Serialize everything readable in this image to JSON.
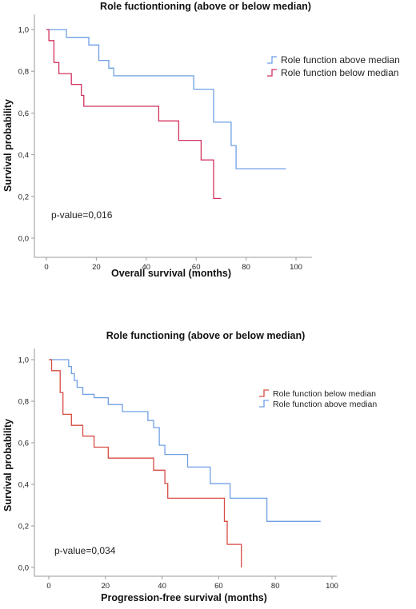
{
  "chart_data": [
    {
      "type": "line",
      "subtype": "kaplan-meier",
      "title": "Role fuctiontioning (above or below median)",
      "xlabel": "Overall survival (months)",
      "ylabel": "Survival probability",
      "xlim": [
        0,
        100
      ],
      "ylim": [
        0,
        1
      ],
      "xticks": [
        "0",
        "20",
        "40",
        "60",
        "80",
        "100"
      ],
      "yticks": [
        "0,0",
        "0,2",
        "0,4",
        "0,6",
        "0,8",
        "1,0"
      ],
      "annotation": "p-value=0,016",
      "legend_position": "top-right",
      "legend_order": [
        "Role function above median",
        "Role function below median"
      ],
      "series": [
        {
          "name": "Role function above median",
          "color": "#6f9fe6",
          "x": [
            0,
            8,
            17,
            21,
            25,
            27,
            37,
            59,
            67,
            74,
            76,
            96
          ],
          "y": [
            1.0,
            0.963,
            0.926,
            0.852,
            0.815,
            0.778,
            0.778,
            0.714,
            0.556,
            0.444,
            0.333,
            0.333
          ]
        },
        {
          "name": "Role function below median",
          "color": "#d2325e",
          "x": [
            0,
            1,
            3,
            5,
            10,
            14,
            15,
            45,
            53,
            62,
            67,
            70
          ],
          "y": [
            1.0,
            0.947,
            0.842,
            0.789,
            0.737,
            0.684,
            0.632,
            0.562,
            0.469,
            0.375,
            0.19,
            0.19
          ]
        }
      ]
    },
    {
      "type": "line",
      "subtype": "kaplan-meier",
      "title": "Role functioning (above or below median)",
      "xlabel": "Progression-free survival (months)",
      "ylabel": "Survival probability",
      "xlim": [
        0,
        100
      ],
      "ylim": [
        0,
        1
      ],
      "xticks": [
        "0",
        "20",
        "40",
        "60",
        "80",
        "100"
      ],
      "yticks": [
        "0,0",
        "0,2",
        "0,4",
        "0,6",
        "0,8",
        "1,0"
      ],
      "annotation": "p-value=0,034",
      "legend_position": "top-right",
      "legend_order": [
        "Role function below median",
        "Role function above median"
      ],
      "series": [
        {
          "name": "Role function above median",
          "color": "#6f9fe6",
          "x": [
            0,
            7,
            8,
            9,
            10,
            12,
            16,
            21,
            26,
            31,
            35,
            37,
            39,
            41,
            49,
            57,
            64,
            77,
            96
          ],
          "y": [
            1.0,
            0.967,
            0.933,
            0.9,
            0.867,
            0.833,
            0.817,
            0.784,
            0.75,
            0.75,
            0.707,
            0.673,
            0.588,
            0.544,
            0.483,
            0.403,
            0.333,
            0.222,
            0.222
          ]
        },
        {
          "name": "Role function below median",
          "color": "#d84c43",
          "x": [
            0,
            1,
            4,
            5,
            8,
            12,
            16,
            21,
            37,
            41,
            42,
            61,
            62,
            63,
            68
          ],
          "y": [
            1.0,
            0.947,
            0.842,
            0.737,
            0.684,
            0.632,
            0.579,
            0.526,
            0.468,
            0.404,
            0.333,
            0.333,
            0.222,
            0.111,
            0.0
          ]
        }
      ]
    }
  ]
}
